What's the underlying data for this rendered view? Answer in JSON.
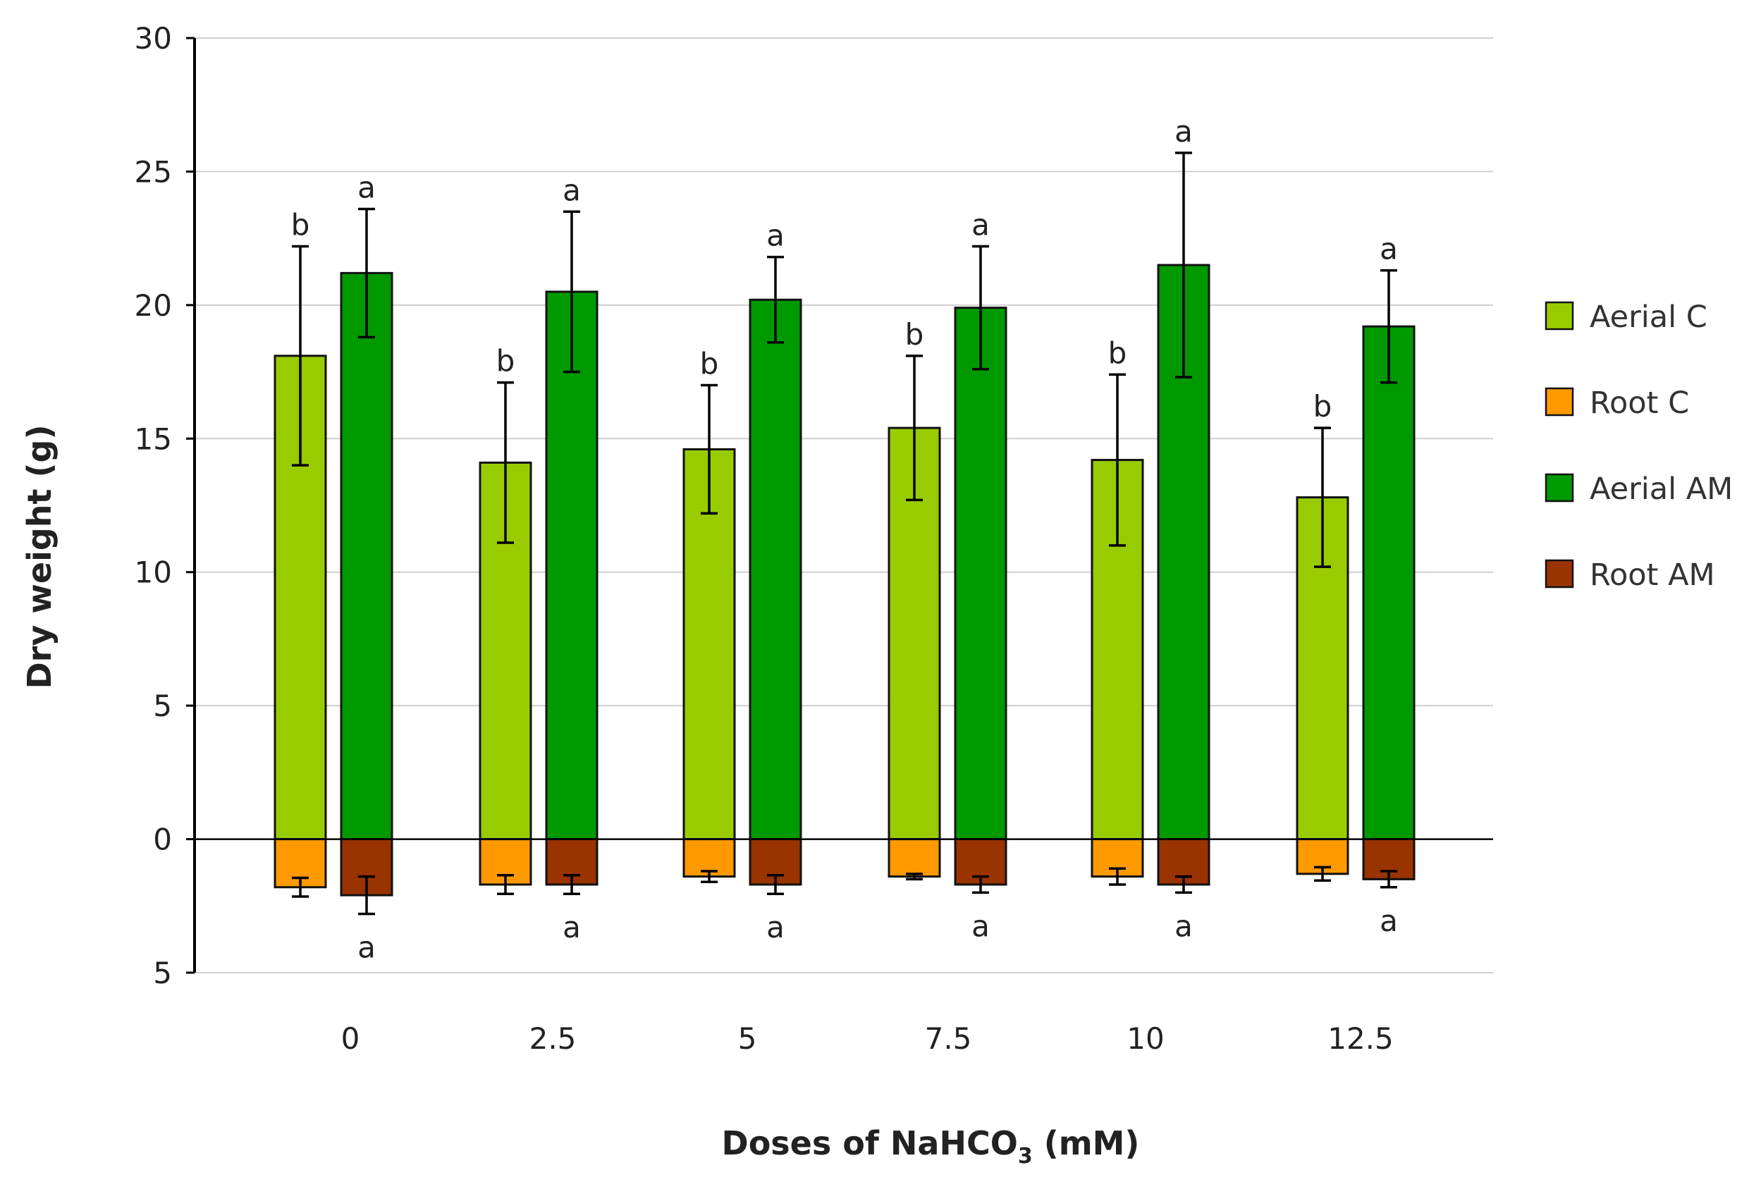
{
  "chart_data": {
    "type": "bar",
    "title": "",
    "xlabel": "Doses of NaHCO",
    "xlabel_subscript": "3",
    "xlabel_suffix": " (mM)",
    "ylabel": "Dry weight (g)",
    "ylim": [
      -5,
      30
    ],
    "yticks": [
      30,
      25,
      20,
      15,
      10,
      5,
      0,
      -5
    ],
    "ytick_labels": [
      "30",
      "25",
      "20",
      "15",
      "10",
      "5",
      "0",
      "5"
    ],
    "grid": true,
    "legend_position": "right",
    "categories": [
      "0",
      "2.5",
      "5",
      "7.5",
      "10",
      "12.5"
    ],
    "series": [
      {
        "name": "Aerial C",
        "color": "#99cc00",
        "slot": 0,
        "values": [
          18.1,
          14.1,
          14.6,
          15.4,
          14.2,
          12.8
        ],
        "errors": [
          4.1,
          3.0,
          2.4,
          2.7,
          3.2,
          2.6
        ],
        "letters": [
          "b",
          "b",
          "b",
          "b",
          "b",
          "b"
        ]
      },
      {
        "name": "Root C",
        "color": "#ff9900",
        "slot": 0,
        "values": [
          -1.8,
          -1.7,
          -1.4,
          -1.4,
          -1.4,
          -1.3
        ],
        "errors": [
          0.35,
          0.35,
          0.2,
          0.1,
          0.3,
          0.25
        ],
        "letters": [
          "",
          "",
          "",
          "",
          "",
          ""
        ]
      },
      {
        "name": "Aerial AM",
        "color": "#009900",
        "slot": 1,
        "values": [
          21.2,
          20.5,
          20.2,
          19.9,
          21.5,
          19.2
        ],
        "errors": [
          2.4,
          3.0,
          1.6,
          2.3,
          4.2,
          2.1
        ],
        "letters": [
          "a",
          "a",
          "a",
          "a",
          "a",
          "a"
        ]
      },
      {
        "name": "Root AM",
        "color": "#993300",
        "slot": 1,
        "values": [
          -2.1,
          -1.7,
          -1.7,
          -1.7,
          -1.7,
          -1.5
        ],
        "errors": [
          0.7,
          0.35,
          0.35,
          0.3,
          0.3,
          0.3
        ],
        "letters": [
          "a",
          "a",
          "a",
          "a",
          "a",
          "a"
        ]
      }
    ]
  }
}
